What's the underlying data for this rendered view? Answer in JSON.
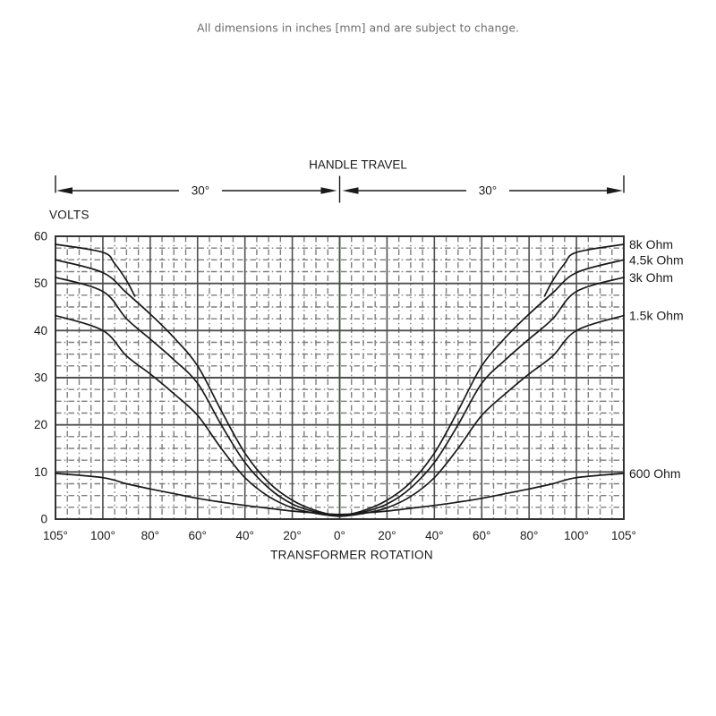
{
  "note": "All dimensions in inches [mm] and are subject to change.",
  "handle_travel": {
    "title": "HANDLE TRAVEL",
    "left_label": "30°",
    "right_label": "30°"
  },
  "chart_data": {
    "type": "line",
    "title": "",
    "ylabel": "VOLTS",
    "xlabel": "TRANSFORMER ROTATION",
    "ylim": [
      0,
      60
    ],
    "y_ticks": [
      "0",
      "10",
      "20",
      "30",
      "40",
      "50",
      "60"
    ],
    "x_tick_labels": [
      "105°",
      "100°",
      "80°",
      "60°",
      "40°",
      "20°",
      "0°",
      "20°",
      "40°",
      "60°",
      "80°",
      "100°",
      "105°"
    ],
    "x_tick_degrees": [
      -105,
      -100,
      -80,
      -60,
      -40,
      -20,
      0,
      20,
      40,
      60,
      80,
      100,
      105
    ],
    "x_scale": {
      "degrees_per_division": 20,
      "outer_division_degrees": 5,
      "divisions": 12
    },
    "grid": {
      "major": true,
      "minor_per_major": 4,
      "minor_style": "dash-dot",
      "y_major_step_volts": 10,
      "y_minor_step_volts": 2.5
    },
    "legend_position": "right-of-plot-at-curve-end",
    "colors": {
      "curve": "#1a1a1a",
      "grid_major": "#4f4f4f",
      "grid_minor": "#7e7e7e",
      "frame": "#333333",
      "center_line": "#3b5b38",
      "text": "#1a1a1a",
      "note_text": "#6e6e6e",
      "background": "#ffffff"
    },
    "series": [
      {
        "name": "8k Ohm",
        "symmetric": true,
        "partial_gap_center": true,
        "points_deg_volts": [
          [
            86.5,
            47.3
          ],
          [
            90,
            50.6
          ],
          [
            95,
            54.2
          ],
          [
            100,
            56.6
          ],
          [
            105,
            58.3
          ]
        ]
      },
      {
        "name": "4.5k Ohm",
        "symmetric": true,
        "partial_gap_center": false,
        "points_deg_volts": [
          [
            0,
            0.8
          ],
          [
            10,
            1.8
          ],
          [
            20,
            4.0
          ],
          [
            30,
            7.8
          ],
          [
            40,
            14.0
          ],
          [
            50,
            23.0
          ],
          [
            60,
            32.5
          ],
          [
            70,
            38.5
          ],
          [
            80,
            43.5
          ],
          [
            90,
            48.0
          ],
          [
            100,
            52.3
          ],
          [
            105,
            55.0
          ]
        ]
      },
      {
        "name": "3k Ohm",
        "symmetric": true,
        "partial_gap_center": false,
        "points_deg_volts": [
          [
            0,
            0.7
          ],
          [
            10,
            1.5
          ],
          [
            20,
            3.2
          ],
          [
            30,
            6.6
          ],
          [
            40,
            12.0
          ],
          [
            50,
            20.0
          ],
          [
            60,
            28.8
          ],
          [
            70,
            33.8
          ],
          [
            80,
            38.2
          ],
          [
            90,
            42.5
          ],
          [
            100,
            48.3
          ],
          [
            105,
            51.3
          ]
        ]
      },
      {
        "name": "1.5k Ohm",
        "symmetric": true,
        "partial_gap_center": false,
        "points_deg_volts": [
          [
            0,
            0.6
          ],
          [
            10,
            1.2
          ],
          [
            20,
            2.4
          ],
          [
            30,
            4.8
          ],
          [
            40,
            8.8
          ],
          [
            50,
            15.0
          ],
          [
            60,
            22.0
          ],
          [
            70,
            26.6
          ],
          [
            80,
            30.8
          ],
          [
            90,
            34.6
          ],
          [
            100,
            40.0
          ],
          [
            105,
            43.2
          ]
        ]
      },
      {
        "name": "600 Ohm",
        "symmetric": true,
        "partial_gap_center": false,
        "points_deg_volts": [
          [
            0,
            1.0
          ],
          [
            10,
            1.3
          ],
          [
            20,
            1.7
          ],
          [
            30,
            2.3
          ],
          [
            40,
            2.9
          ],
          [
            50,
            3.6
          ],
          [
            60,
            4.4
          ],
          [
            70,
            5.4
          ],
          [
            80,
            6.4
          ],
          [
            90,
            7.5
          ],
          [
            100,
            8.8
          ],
          [
            105,
            9.7
          ]
        ]
      }
    ]
  }
}
